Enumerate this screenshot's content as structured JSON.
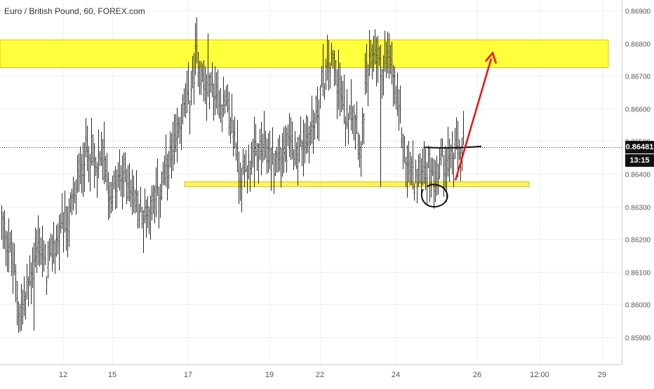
{
  "header": {
    "title": "Euro / British Pound, 60, FOREX.com"
  },
  "price_axis": {
    "ticks": [
      {
        "value": 0.859,
        "label": "0.85900"
      },
      {
        "value": 0.86,
        "label": "0.86000"
      },
      {
        "value": 0.861,
        "label": "0.86100"
      },
      {
        "value": 0.862,
        "label": "0.86200"
      },
      {
        "value": 0.863,
        "label": "0.86300"
      },
      {
        "value": 0.864,
        "label": "0.86400"
      },
      {
        "value": 0.865,
        "label": "0.86500"
      },
      {
        "value": 0.866,
        "label": "0.86600"
      },
      {
        "value": 0.867,
        "label": "0.86700"
      },
      {
        "value": 0.868,
        "label": "0.86800"
      },
      {
        "value": 0.869,
        "label": "0.86900"
      }
    ],
    "current_price": 0.86481,
    "current_price_label": "0.86481",
    "countdown_label": "13:15",
    "tag_color": "#111111"
  },
  "time_axis": {
    "ticks": [
      "12",
      "15",
      "17",
      "19",
      "22",
      "24",
      "26",
      "12:00",
      "29"
    ]
  },
  "chart_data": {
    "type": "candlestick",
    "symbol": "Euro / British Pound",
    "interval": "60",
    "source": "FOREX.com",
    "y_range": [
      0.8584,
      0.8694
    ],
    "bar_count": 330,
    "anchors": [
      [
        0,
        0.8625
      ],
      [
        5,
        0.8619
      ],
      [
        9,
        0.8609
      ],
      [
        13,
        0.8597
      ],
      [
        17,
        0.8601
      ],
      [
        22,
        0.8612
      ],
      [
        27,
        0.8619
      ],
      [
        32,
        0.8609
      ],
      [
        37,
        0.8618
      ],
      [
        42,
        0.8621
      ],
      [
        47,
        0.8625
      ],
      [
        52,
        0.8632
      ],
      [
        57,
        0.8643
      ],
      [
        62,
        0.8649
      ],
      [
        67,
        0.8641
      ],
      [
        72,
        0.8644
      ],
      [
        77,
        0.8634
      ],
      [
        82,
        0.8636
      ],
      [
        88,
        0.864
      ],
      [
        95,
        0.8632
      ],
      [
        100,
        0.8627
      ],
      [
        106,
        0.863
      ],
      [
        112,
        0.8634
      ],
      [
        118,
        0.8641
      ],
      [
        124,
        0.8648
      ],
      [
        128,
        0.8658
      ],
      [
        134,
        0.8663
      ],
      [
        139,
        0.8678
      ],
      [
        145,
        0.8666
      ],
      [
        150,
        0.8666
      ],
      [
        156,
        0.8663
      ],
      [
        161,
        0.8659
      ],
      [
        166,
        0.8652
      ],
      [
        170,
        0.8639
      ],
      [
        176,
        0.8643
      ],
      [
        182,
        0.8646
      ],
      [
        188,
        0.8647
      ],
      [
        194,
        0.8644
      ],
      [
        200,
        0.8646
      ],
      [
        206,
        0.8648
      ],
      [
        212,
        0.8648
      ],
      [
        218,
        0.8651
      ],
      [
        223,
        0.8656
      ],
      [
        228,
        0.8666
      ],
      [
        233,
        0.8673
      ],
      [
        237,
        0.8674
      ],
      [
        241,
        0.8665
      ],
      [
        245,
        0.8657
      ],
      [
        249,
        0.8663
      ],
      [
        253,
        0.8657
      ],
      [
        256,
        0.8646
      ],
      [
        259,
        0.8666
      ],
      [
        262,
        0.8673
      ],
      [
        266,
        0.8679
      ],
      [
        270,
        0.8672
      ],
      [
        274,
        0.8675
      ],
      [
        278,
        0.8672
      ],
      [
        282,
        0.8661
      ],
      [
        285,
        0.8654
      ],
      [
        288,
        0.8643
      ],
      [
        292,
        0.864
      ],
      [
        296,
        0.8638
      ],
      [
        300,
        0.8643
      ],
      [
        305,
        0.8641
      ],
      [
        309,
        0.8639
      ],
      [
        313,
        0.8645
      ],
      [
        318,
        0.8644
      ],
      [
        323,
        0.8646
      ],
      [
        329,
        0.8648
      ]
    ],
    "spikes": [
      [
        23,
        0.8592
      ],
      [
        73,
        0.8656
      ],
      [
        147,
        0.8683
      ],
      [
        180,
        0.8636
      ],
      [
        240,
        0.8678
      ],
      [
        270,
        0.8636
      ],
      [
        276,
        0.8683
      ],
      [
        296,
        0.8631
      ],
      [
        320,
        0.8649
      ]
    ],
    "annotations": {
      "resistance_zone": {
        "top": 0.8681,
        "bottom": 0.86725,
        "color": "#ffff3b"
      },
      "support_zone": {
        "top": 0.86376,
        "bottom": 0.86369,
        "color": "#fff35a"
      },
      "neckline": {
        "from": 0.86481,
        "to": 0.86482
      },
      "arrow": {
        "from": 0.8638,
        "to": 0.8677,
        "color": "#ee1111"
      }
    }
  }
}
